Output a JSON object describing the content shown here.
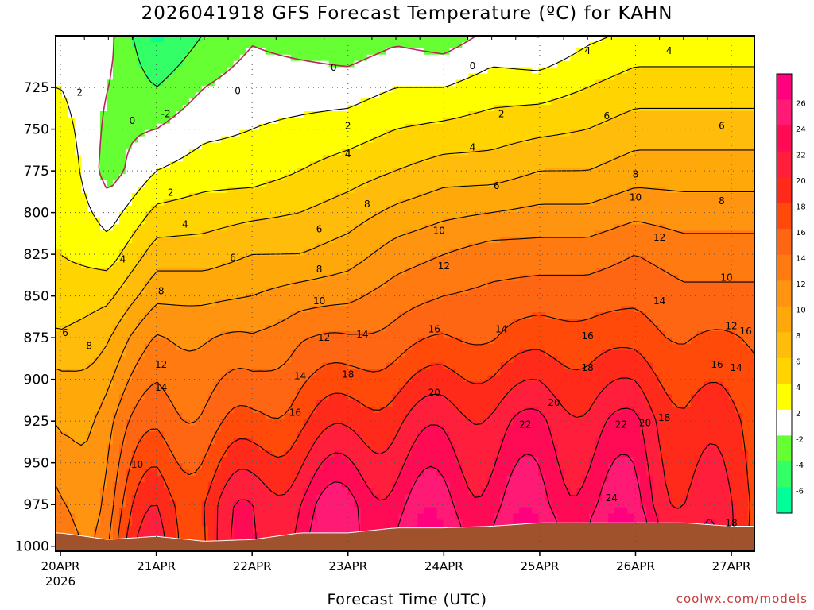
{
  "chart_data": {
    "type": "heatmap",
    "title": "2026041918 GFS Forecast Temperature (ºC) for KAHN",
    "xlabel": "Forecast Time (UTC)",
    "ylabel": "Pressure (hPa)",
    "credit": "coolwx.com/models",
    "y_ticks": [
      725,
      750,
      775,
      800,
      825,
      850,
      875,
      900,
      925,
      950,
      975,
      1000
    ],
    "ylim": [
      1003,
      694
    ],
    "x_ticks": [
      "20APR",
      "21APR",
      "22APR",
      "23APR",
      "24APR",
      "25APR",
      "26APR",
      "27APR"
    ],
    "x_year": "2026",
    "xlim_days": [
      -0.05,
      7.24
    ],
    "colorbar": {
      "ticks": [
        26,
        24,
        22,
        20,
        18,
        16,
        14,
        12,
        10,
        8,
        6,
        4,
        2,
        -2,
        -4,
        -6
      ],
      "colors": [
        "#ff007f",
        "#ff1a75",
        "#ff0a54",
        "#ff1e3c",
        "#ff2a1a",
        "#ff4a0a",
        "#ff6614",
        "#ff7a10",
        "#ff9410",
        "#ffa80a",
        "#ffbc0a",
        "#ffd400",
        "#ffff00",
        "#ffffff",
        "#66ff33",
        "#33ff66",
        "#00ff99"
      ]
    },
    "profiles": [
      {
        "t": 0.0,
        "sfc": 992,
        "vals": [
          [
            725,
            2
          ],
          [
            775,
            4
          ],
          [
            825,
            4
          ],
          [
            875,
            6
          ],
          [
            900,
            8
          ],
          [
            950,
            10
          ],
          [
            992,
            12
          ]
        ]
      },
      {
        "t": 0.5,
        "sfc": 996,
        "vals": [
          [
            725,
            0
          ],
          [
            775,
            -1
          ],
          [
            825,
            3
          ],
          [
            875,
            8
          ],
          [
            925,
            12
          ],
          [
            975,
            14
          ],
          [
            996,
            15
          ]
        ]
      },
      {
        "t": 1.0,
        "sfc": 994,
        "vals": [
          [
            725,
            -2
          ],
          [
            775,
            2
          ],
          [
            825,
            7
          ],
          [
            875,
            12
          ],
          [
            925,
            15
          ],
          [
            975,
            19
          ],
          [
            994,
            20
          ]
        ]
      },
      {
        "t": 1.5,
        "sfc": 997,
        "vals": [
          [
            725,
            0
          ],
          [
            775,
            3
          ],
          [
            825,
            7
          ],
          [
            875,
            12
          ],
          [
            925,
            15
          ],
          [
            975,
            19
          ],
          [
            997,
            19
          ]
        ]
      },
      {
        "t": 2.0,
        "sfc": 996,
        "vals": [
          [
            725,
            1
          ],
          [
            775,
            3
          ],
          [
            825,
            8
          ],
          [
            875,
            12
          ],
          [
            925,
            16
          ],
          [
            975,
            21
          ],
          [
            996,
            21
          ]
        ]
      },
      {
        "t": 2.5,
        "sfc": 992,
        "vals": [
          [
            725,
            1
          ],
          [
            775,
            4
          ],
          [
            825,
            8
          ],
          [
            875,
            14
          ],
          [
            925,
            18
          ],
          [
            975,
            23
          ],
          [
            992,
            24
          ]
        ]
      },
      {
        "t": 3.0,
        "sfc": 992,
        "vals": [
          [
            725,
            1
          ],
          [
            775,
            5
          ],
          [
            825,
            9
          ],
          [
            875,
            14
          ],
          [
            925,
            19
          ],
          [
            975,
            24
          ],
          [
            992,
            24
          ]
        ]
      },
      {
        "t": 3.5,
        "sfc": 989,
        "vals": [
          [
            725,
            2
          ],
          [
            775,
            6
          ],
          [
            825,
            11
          ],
          [
            875,
            15
          ],
          [
            925,
            20
          ],
          [
            975,
            24
          ],
          [
            989,
            25
          ]
        ]
      },
      {
        "t": 4.0,
        "sfc": 989,
        "vals": [
          [
            725,
            2
          ],
          [
            775,
            7
          ],
          [
            825,
            12
          ],
          [
            875,
            16
          ],
          [
            925,
            21
          ],
          [
            975,
            24
          ],
          [
            989,
            25
          ]
        ]
      },
      {
        "t": 4.5,
        "sfc": 988,
        "vals": [
          [
            725,
            3
          ],
          [
            775,
            7
          ],
          [
            825,
            13
          ],
          [
            875,
            16
          ],
          [
            925,
            21
          ],
          [
            975,
            24
          ],
          [
            988,
            25
          ]
        ]
      },
      {
        "t": 5.0,
        "sfc": 986,
        "vals": [
          [
            725,
            3
          ],
          [
            775,
            8
          ],
          [
            825,
            13
          ],
          [
            875,
            17
          ],
          [
            925,
            22
          ],
          [
            975,
            24
          ],
          [
            986,
            25
          ]
        ]
      },
      {
        "t": 5.5,
        "sfc": 986,
        "vals": [
          [
            725,
            4
          ],
          [
            775,
            8
          ],
          [
            825,
            13
          ],
          [
            875,
            17
          ],
          [
            925,
            21
          ],
          [
            975,
            24
          ],
          [
            986,
            25
          ]
        ]
      },
      {
        "t": 6.0,
        "sfc": 986,
        "vals": [
          [
            725,
            5
          ],
          [
            775,
            9
          ],
          [
            825,
            14
          ],
          [
            875,
            17
          ],
          [
            925,
            22
          ],
          [
            975,
            24
          ],
          [
            986,
            25
          ]
        ]
      },
      {
        "t": 6.5,
        "sfc": 986,
        "vals": [
          [
            725,
            5
          ],
          [
            775,
            9
          ],
          [
            825,
            13
          ],
          [
            875,
            16
          ],
          [
            925,
            19
          ],
          [
            975,
            21
          ],
          [
            986,
            22
          ]
        ]
      },
      {
        "t": 7.0,
        "sfc": 988,
        "vals": [
          [
            725,
            5
          ],
          [
            775,
            9
          ],
          [
            825,
            13
          ],
          [
            875,
            16
          ],
          [
            925,
            18
          ],
          [
            975,
            19
          ],
          [
            988,
            19
          ]
        ]
      },
      {
        "t": 7.24,
        "sfc": 988,
        "vals": [
          [
            725,
            5
          ],
          [
            775,
            9
          ],
          [
            825,
            13
          ],
          [
            875,
            16
          ],
          [
            925,
            18
          ],
          [
            975,
            19
          ],
          [
            988,
            19
          ]
        ]
      }
    ],
    "contour_levels": [
      -2,
      0,
      2,
      4,
      6,
      8,
      10,
      12,
      14,
      16,
      18,
      20,
      22,
      24
    ],
    "contour_labels": [
      {
        "t": 0.2,
        "p": 728,
        "v": "2"
      },
      {
        "t": 0.75,
        "p": 745,
        "v": "0"
      },
      {
        "t": 1.1,
        "p": 741,
        "v": "-2"
      },
      {
        "t": 1.15,
        "p": 788,
        "v": "2"
      },
      {
        "t": 1.3,
        "p": 807,
        "v": "4"
      },
      {
        "t": 0.65,
        "p": 828,
        "v": "4"
      },
      {
        "t": 0.05,
        "p": 872,
        "v": "6"
      },
      {
        "t": 0.3,
        "p": 880,
        "v": "8"
      },
      {
        "t": 1.05,
        "p": 847,
        "v": "8"
      },
      {
        "t": 1.05,
        "p": 891,
        "v": "12"
      },
      {
        "t": 1.05,
        "p": 905,
        "v": "14"
      },
      {
        "t": 0.8,
        "p": 951,
        "v": "10"
      },
      {
        "t": 1.85,
        "p": 727,
        "v": "0"
      },
      {
        "t": 1.8,
        "p": 827,
        "v": "6"
      },
      {
        "t": 2.7,
        "p": 810,
        "v": "6"
      },
      {
        "t": 2.7,
        "p": 834,
        "v": "8"
      },
      {
        "t": 2.7,
        "p": 853,
        "v": "10"
      },
      {
        "t": 2.75,
        "p": 875,
        "v": "12"
      },
      {
        "t": 2.5,
        "p": 898,
        "v": "14"
      },
      {
        "t": 2.45,
        "p": 920,
        "v": "16"
      },
      {
        "t": 3.0,
        "p": 748,
        "v": "2"
      },
      {
        "t": 3.0,
        "p": 765,
        "v": "4"
      },
      {
        "t": 3.0,
        "p": 897,
        "v": "18"
      },
      {
        "t": 3.15,
        "p": 873,
        "v": "14"
      },
      {
        "t": 2.85,
        "p": 713,
        "v": "0"
      },
      {
        "t": 3.2,
        "p": 795,
        "v": "8"
      },
      {
        "t": 3.95,
        "p": 811,
        "v": "10"
      },
      {
        "t": 4.0,
        "p": 832,
        "v": "12"
      },
      {
        "t": 3.9,
        "p": 870,
        "v": "16"
      },
      {
        "t": 3.9,
        "p": 908,
        "v": "20"
      },
      {
        "t": 4.3,
        "p": 712,
        "v": "0"
      },
      {
        "t": 4.3,
        "p": 761,
        "v": "4"
      },
      {
        "t": 4.55,
        "p": 784,
        "v": "6"
      },
      {
        "t": 4.6,
        "p": 741,
        "v": "2"
      },
      {
        "t": 4.6,
        "p": 870,
        "v": "14"
      },
      {
        "t": 4.85,
        "p": 927,
        "v": "22"
      },
      {
        "t": 5.15,
        "p": 914,
        "v": "20"
      },
      {
        "t": 5.5,
        "p": 893,
        "v": "18"
      },
      {
        "t": 5.5,
        "p": 874,
        "v": "16"
      },
      {
        "t": 5.5,
        "p": 703,
        "v": "4"
      },
      {
        "t": 5.7,
        "p": 742,
        "v": "6"
      },
      {
        "t": 6.0,
        "p": 777,
        "v": "8"
      },
      {
        "t": 6.0,
        "p": 791,
        "v": "10"
      },
      {
        "t": 6.25,
        "p": 815,
        "v": "12"
      },
      {
        "t": 6.25,
        "p": 853,
        "v": "14"
      },
      {
        "t": 5.85,
        "p": 927,
        "v": "22"
      },
      {
        "t": 6.1,
        "p": 926,
        "v": "20"
      },
      {
        "t": 6.3,
        "p": 923,
        "v": "18"
      },
      {
        "t": 5.75,
        "p": 971,
        "v": "24"
      },
      {
        "t": 6.35,
        "p": 703,
        "v": "4"
      },
      {
        "t": 6.9,
        "p": 748,
        "v": "6"
      },
      {
        "t": 6.9,
        "p": 793,
        "v": "8"
      },
      {
        "t": 6.95,
        "p": 839,
        "v": "10"
      },
      {
        "t": 7.0,
        "p": 868,
        "v": "12"
      },
      {
        "t": 6.85,
        "p": 891,
        "v": "16"
      },
      {
        "t": 7.05,
        "p": 893,
        "v": "14"
      },
      {
        "t": 7.15,
        "p": 871,
        "v": "16"
      },
      {
        "t": 7.0,
        "p": 986,
        "v": "18"
      }
    ]
  }
}
